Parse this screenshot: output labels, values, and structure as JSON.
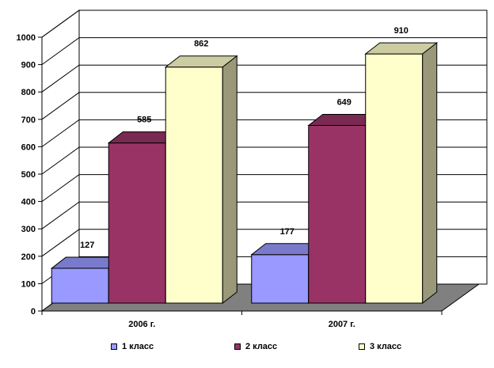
{
  "chart_data": {
    "type": "bar",
    "title": "",
    "xlabel": "",
    "ylabel": "",
    "categories": [
      "2006 г.",
      "2007 г."
    ],
    "series": [
      {
        "name": "1 класс",
        "values": [
          127,
          177
        ],
        "labels": [
          "127",
          "177"
        ],
        "color": "#9999ff"
      },
      {
        "name": "2 класс",
        "values": [
          585,
          649
        ],
        "labels": [
          "585",
          "649"
        ],
        "color": "#993366"
      },
      {
        "name": "3 класс",
        "values": [
          862,
          910
        ],
        "labels": [
          "862",
          "910"
        ],
        "color": "#ffffcc"
      }
    ],
    "ylim": [
      0,
      1000
    ],
    "yticks": [
      0,
      100,
      200,
      300,
      400,
      500,
      600,
      700,
      800,
      900,
      1000
    ],
    "ytick_labels": [
      "0",
      "100",
      "200",
      "300",
      "400",
      "500",
      "600",
      "700",
      "800",
      "900",
      "1000"
    ],
    "grid": true,
    "three_d": true,
    "floor_color": "#808080",
    "legend_position": "bottom"
  }
}
